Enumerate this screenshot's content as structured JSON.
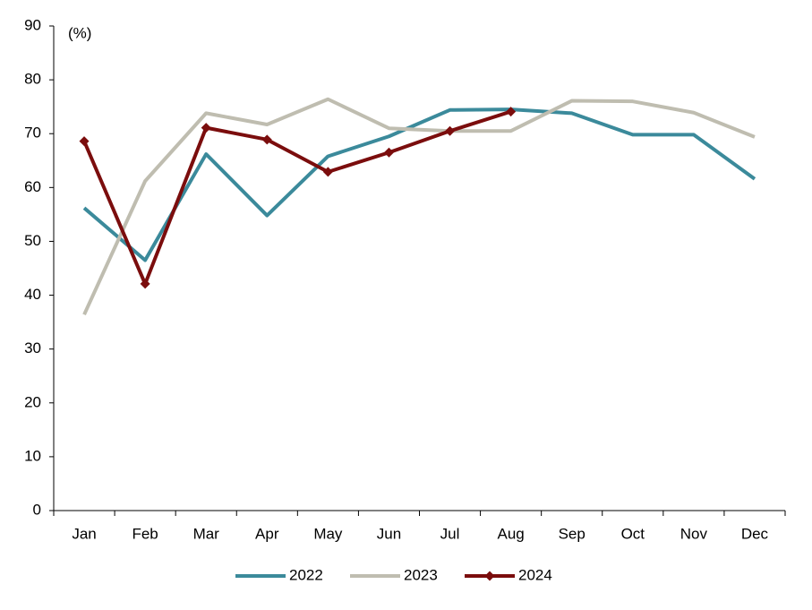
{
  "chart_data": {
    "type": "line",
    "y_unit_label": "(%)",
    "categories": [
      "Jan",
      "Feb",
      "Mar",
      "Apr",
      "May",
      "Jun",
      "Jul",
      "Aug",
      "Sep",
      "Oct",
      "Nov",
      "Dec"
    ],
    "series": [
      {
        "name": "2022",
        "color": "#3b8a9b",
        "values": [
          56.2,
          46.5,
          66.2,
          54.8,
          65.8,
          69.5,
          74.4,
          74.5,
          73.8,
          69.8,
          69.8,
          61.6
        ]
      },
      {
        "name": "2023",
        "color": "#bfbdb0",
        "values": [
          36.4,
          61.2,
          73.8,
          71.7,
          76.4,
          71.0,
          70.5,
          70.5,
          76.1,
          76.0,
          73.9,
          69.4
        ]
      },
      {
        "name": "2024",
        "color": "#7b0d0d",
        "marker": "diamond",
        "values": [
          68.6,
          42.1,
          71.1,
          68.9,
          62.9,
          66.5,
          70.5,
          74.1,
          null,
          null,
          null,
          null
        ]
      }
    ],
    "ylim": [
      0,
      90
    ],
    "yticks": [
      0,
      10,
      20,
      30,
      40,
      50,
      60,
      70,
      80,
      90
    ],
    "grid": false,
    "legend": "bottom"
  }
}
